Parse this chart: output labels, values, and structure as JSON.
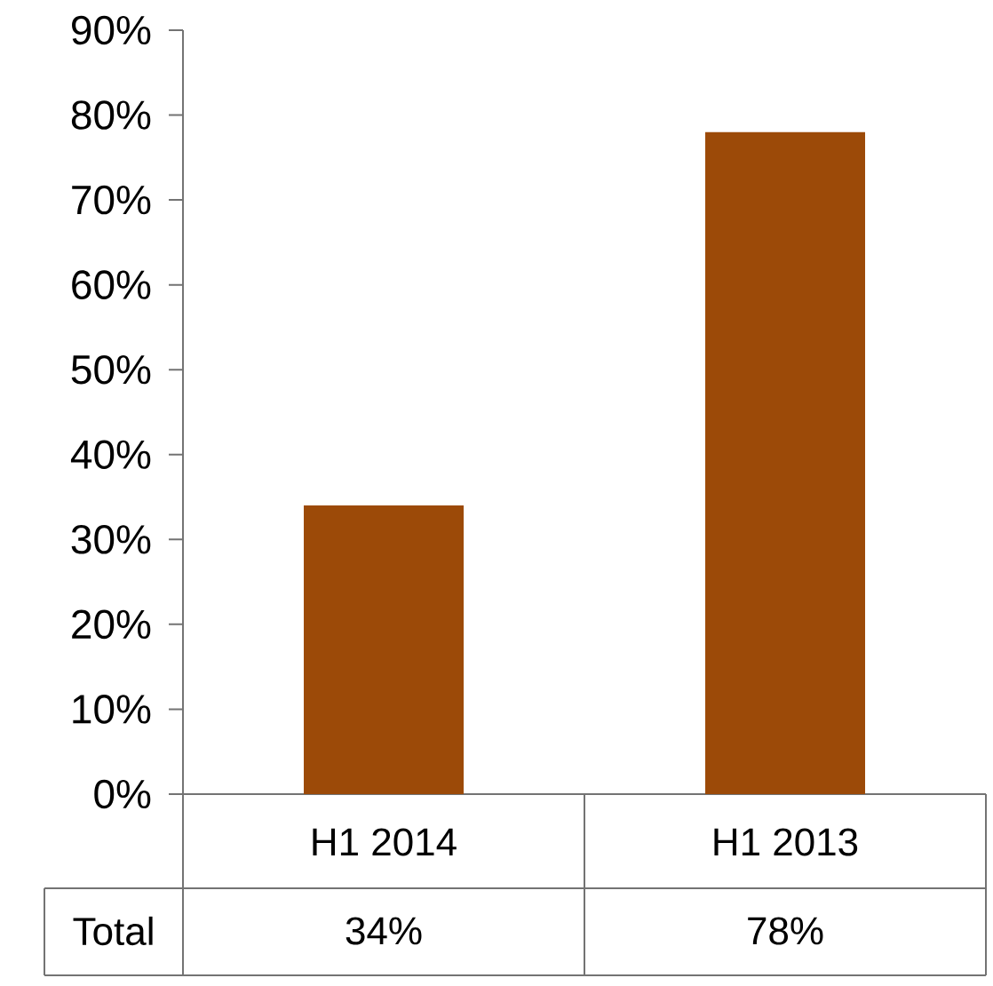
{
  "chart_data": {
    "type": "bar",
    "categories": [
      "H1 2014",
      "H1 2013"
    ],
    "series": [
      {
        "name": "Total",
        "color": "#9c4a08",
        "values": [
          34,
          78
        ],
        "value_labels": [
          "34%",
          "78%"
        ]
      }
    ],
    "ylim": [
      0,
      90
    ],
    "yticks": [
      {
        "value": 0,
        "label": "0%"
      },
      {
        "value": 10,
        "label": "10%"
      },
      {
        "value": 20,
        "label": "20%"
      },
      {
        "value": 30,
        "label": "30%"
      },
      {
        "value": 40,
        "label": "40%"
      },
      {
        "value": 50,
        "label": "50%"
      },
      {
        "value": 60,
        "label": "60%"
      },
      {
        "value": 70,
        "label": "70%"
      },
      {
        "value": 80,
        "label": "80%"
      },
      {
        "value": 90,
        "label": "90%"
      }
    ],
    "grid": false,
    "legend": false
  }
}
